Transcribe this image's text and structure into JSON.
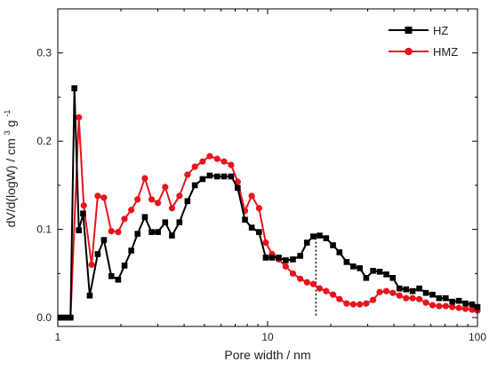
{
  "chart_data": {
    "type": "line",
    "xlabel": "Pore width / nm",
    "ylabel": "dV/d(logW) / cm",
    "ylabel_sup": "3",
    "ylabel_tail": " g",
    "ylabel_sup2": "-1",
    "xscale": "log",
    "xlim": [
      1,
      100
    ],
    "ylim": [
      -0.01,
      0.35
    ],
    "xticks": [
      1,
      10,
      100
    ],
    "xtick_labels": [
      "1",
      "10",
      "100"
    ],
    "yticks": [
      0.0,
      0.1,
      0.2,
      0.3
    ],
    "ytick_labels": [
      "0.0",
      "0.1",
      "0.2",
      "0.3"
    ],
    "grid": false,
    "legend_position": "top-right",
    "annotation": {
      "type": "dotted-vertical-line",
      "x": 17,
      "y_range": [
        0.002,
        0.095
      ]
    },
    "series": [
      {
        "name": "HZ",
        "color": "#000000",
        "marker": "square",
        "points": [
          [
            1.03,
            0.0
          ],
          [
            1.09,
            0.0
          ],
          [
            1.15,
            0.0
          ],
          [
            1.2,
            0.26
          ],
          [
            1.26,
            0.099
          ],
          [
            1.32,
            0.118
          ],
          [
            1.42,
            0.025
          ],
          [
            1.55,
            0.072
          ],
          [
            1.66,
            0.088
          ],
          [
            1.8,
            0.047
          ],
          [
            1.94,
            0.043
          ],
          [
            2.08,
            0.059
          ],
          [
            2.24,
            0.076
          ],
          [
            2.4,
            0.095
          ],
          [
            2.6,
            0.114
          ],
          [
            2.8,
            0.097
          ],
          [
            3.0,
            0.097
          ],
          [
            3.25,
            0.108
          ],
          [
            3.5,
            0.093
          ],
          [
            3.8,
            0.108
          ],
          [
            4.15,
            0.132
          ],
          [
            4.5,
            0.15
          ],
          [
            4.9,
            0.157
          ],
          [
            5.3,
            0.161
          ],
          [
            5.75,
            0.16
          ],
          [
            6.2,
            0.16
          ],
          [
            6.7,
            0.16
          ],
          [
            7.2,
            0.147
          ],
          [
            7.8,
            0.111
          ],
          [
            8.4,
            0.102
          ],
          [
            9.1,
            0.097
          ],
          [
            9.8,
            0.068
          ],
          [
            10.5,
            0.068
          ],
          [
            11.3,
            0.068
          ],
          [
            12.2,
            0.065
          ],
          [
            13.2,
            0.066
          ],
          [
            14.3,
            0.07
          ],
          [
            15.4,
            0.085
          ],
          [
            16.5,
            0.092
          ],
          [
            17.7,
            0.093
          ],
          [
            19.0,
            0.09
          ],
          [
            20.5,
            0.082
          ],
          [
            22.0,
            0.074
          ],
          [
            23.8,
            0.063
          ],
          [
            25.6,
            0.058
          ],
          [
            27.5,
            0.056
          ],
          [
            29.5,
            0.045
          ],
          [
            31.8,
            0.053
          ],
          [
            34.2,
            0.052
          ],
          [
            36.8,
            0.049
          ],
          [
            39.5,
            0.045
          ],
          [
            42.5,
            0.033
          ],
          [
            45.7,
            0.032
          ],
          [
            49.1,
            0.03
          ],
          [
            52.8,
            0.033
          ],
          [
            56.8,
            0.028
          ],
          [
            61.1,
            0.026
          ],
          [
            65.7,
            0.022
          ],
          [
            70.6,
            0.022
          ],
          [
            75.9,
            0.018
          ],
          [
            81.6,
            0.019
          ],
          [
            87.7,
            0.016
          ],
          [
            94.3,
            0.015
          ],
          [
            100.0,
            0.012
          ]
        ]
      },
      {
        "name": "HMZ",
        "color": "#e8141c",
        "marker": "circle",
        "points": [
          [
            1.03,
            0.0
          ],
          [
            1.09,
            0.0
          ],
          [
            1.15,
            0.0
          ],
          [
            1.26,
            0.227
          ],
          [
            1.33,
            0.127
          ],
          [
            1.45,
            0.06
          ],
          [
            1.55,
            0.138
          ],
          [
            1.66,
            0.136
          ],
          [
            1.8,
            0.098
          ],
          [
            1.94,
            0.097
          ],
          [
            2.08,
            0.112
          ],
          [
            2.24,
            0.122
          ],
          [
            2.4,
            0.134
          ],
          [
            2.6,
            0.158
          ],
          [
            2.8,
            0.134
          ],
          [
            3.0,
            0.13
          ],
          [
            3.25,
            0.148
          ],
          [
            3.5,
            0.124
          ],
          [
            3.8,
            0.138
          ],
          [
            4.15,
            0.162
          ],
          [
            4.5,
            0.171
          ],
          [
            4.9,
            0.177
          ],
          [
            5.3,
            0.183
          ],
          [
            5.75,
            0.18
          ],
          [
            6.2,
            0.177
          ],
          [
            6.7,
            0.173
          ],
          [
            7.2,
            0.154
          ],
          [
            7.8,
            0.121
          ],
          [
            8.4,
            0.138
          ],
          [
            9.1,
            0.124
          ],
          [
            9.8,
            0.085
          ],
          [
            10.5,
            0.072
          ],
          [
            11.3,
            0.066
          ],
          [
            12.2,
            0.058
          ],
          [
            13.2,
            0.05
          ],
          [
            14.3,
            0.044
          ],
          [
            15.4,
            0.04
          ],
          [
            16.5,
            0.038
          ],
          [
            17.7,
            0.033
          ],
          [
            19.0,
            0.03
          ],
          [
            20.5,
            0.026
          ],
          [
            22.0,
            0.021
          ],
          [
            23.8,
            0.016
          ],
          [
            25.6,
            0.015
          ],
          [
            27.5,
            0.015
          ],
          [
            29.5,
            0.016
          ],
          [
            31.8,
            0.02
          ],
          [
            34.2,
            0.029
          ],
          [
            36.8,
            0.03
          ],
          [
            39.5,
            0.028
          ],
          [
            42.5,
            0.025
          ],
          [
            45.7,
            0.022
          ],
          [
            49.1,
            0.022
          ],
          [
            52.8,
            0.021
          ],
          [
            56.8,
            0.017
          ],
          [
            61.1,
            0.014
          ],
          [
            65.7,
            0.013
          ],
          [
            70.6,
            0.013
          ],
          [
            75.9,
            0.012
          ],
          [
            81.6,
            0.011
          ],
          [
            87.7,
            0.01
          ],
          [
            94.3,
            0.009
          ],
          [
            100.0,
            0.008
          ]
        ]
      }
    ]
  }
}
